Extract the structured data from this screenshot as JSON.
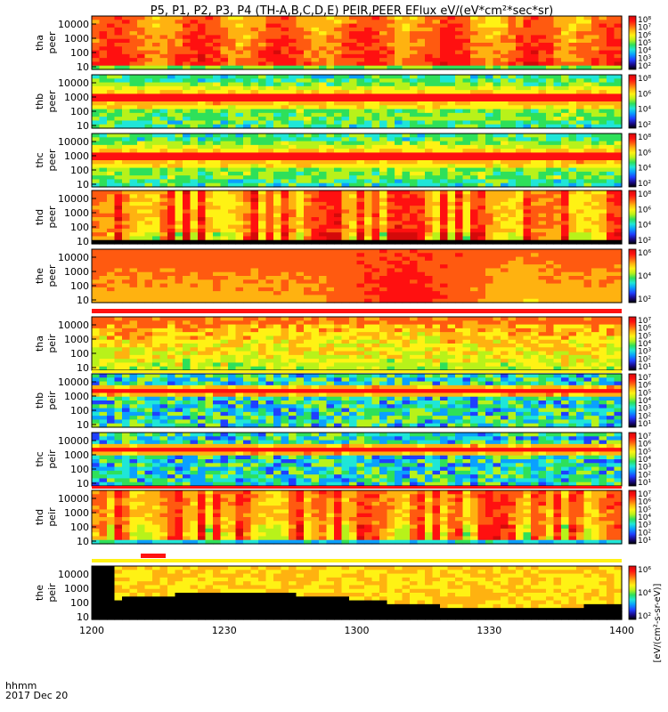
{
  "chart_data": {
    "type": "heatmap",
    "title": "P5, P1, P2, P3, P4 (TH-A,B,C,D,E) PEIR,PEER EFlux eV/(eV*cm²*sec*sr)",
    "x_axis": {
      "corner_label": "hhmm",
      "date_label": "2017 Dec 20",
      "range": [
        "1200",
        "1400"
      ],
      "ticks": [
        "1200",
        "1230",
        "1300",
        "1330",
        "1400"
      ]
    },
    "y_ticks_energy_eV": [
      "10000",
      "1000",
      "100",
      "10"
    ],
    "y_scale": "log",
    "colorbar_label": "[eV/(cm²-s-sr-eV)]",
    "panels": [
      {
        "probe_label": "tha",
        "species_label": "peer",
        "colorbar_ticks": [
          "10⁸",
          "10⁷",
          "10⁶",
          "10⁵",
          "10⁴",
          "10³",
          "10²"
        ]
      },
      {
        "probe_label": "thb",
        "species_label": "peer",
        "colorbar_ticks": [
          "10⁸",
          "10⁶",
          "10⁴",
          "10²"
        ]
      },
      {
        "probe_label": "thc",
        "species_label": "peer",
        "colorbar_ticks": [
          "10⁸",
          "10⁶",
          "10⁴",
          "10²"
        ]
      },
      {
        "probe_label": "thd",
        "species_label": "peer",
        "colorbar_ticks": [
          "10⁸",
          "10⁶",
          "10⁴",
          "10²"
        ]
      },
      {
        "probe_label": "the",
        "species_label": "peer",
        "colorbar_ticks": [
          "10⁶",
          "10⁴",
          "10²"
        ]
      },
      {
        "probe_label": "tha",
        "species_label": "peir",
        "colorbar_ticks": [
          "10⁷",
          "10⁶",
          "10⁵",
          "10⁴",
          "10³",
          "10²",
          "10¹"
        ]
      },
      {
        "probe_label": "thb",
        "species_label": "peir",
        "colorbar_ticks": [
          "10⁷",
          "10⁶",
          "10⁵",
          "10⁴",
          "10³",
          "10²",
          "10¹"
        ]
      },
      {
        "probe_label": "thc",
        "species_label": "peir",
        "colorbar_ticks": [
          "10⁷",
          "10⁶",
          "10⁵",
          "10⁴",
          "10³",
          "10²",
          "10¹"
        ]
      },
      {
        "probe_label": "thd",
        "species_label": "peir",
        "colorbar_ticks": [
          "10⁷",
          "10⁶",
          "10⁵",
          "10⁴",
          "10³",
          "10²",
          "10¹"
        ]
      },
      {
        "probe_label": "the",
        "species_label": "peir",
        "colorbar_ticks": [
          "10⁶",
          "10⁴",
          "10²"
        ]
      }
    ],
    "colormap": [
      "#000000",
      "#1a0b8c",
      "#1f3fff",
      "#0aa0ff",
      "#1fe6d8",
      "#2ee05a",
      "#b8f21a",
      "#fff214",
      "#ffb210",
      "#ff5a10",
      "#ff1010",
      "#d40a0a"
    ]
  }
}
